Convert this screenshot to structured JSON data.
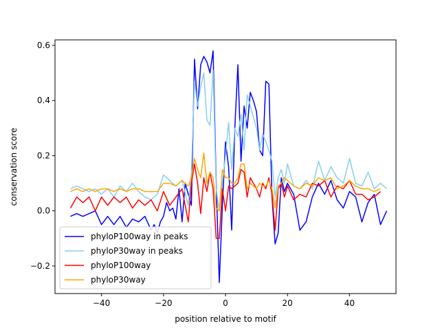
{
  "chart_data": {
    "type": "line",
    "xlabel": "position relative to motif",
    "ylabel": "conservation score",
    "xlim": [
      -55,
      55
    ],
    "ylim": [
      -0.3,
      0.62
    ],
    "xticks": [
      -40,
      -20,
      0,
      20,
      40
    ],
    "xtick_labels": [
      "−40",
      "−20",
      "0",
      "20",
      "40"
    ],
    "yticks": [
      -0.2,
      0.0,
      0.2,
      0.4,
      0.6
    ],
    "ytick_labels": [
      "−0.2",
      "0.0",
      "0.2",
      "0.4",
      "0.6"
    ],
    "grid": false,
    "legend_position": "lower-left",
    "series": [
      {
        "name": "phyloP100way in peaks",
        "color": "#0000ff",
        "points": [
          [
            -50,
            -0.02
          ],
          [
            -48,
            -0.01
          ],
          [
            -46,
            -0.02
          ],
          [
            -44,
            -0.01
          ],
          [
            -42,
            0.0
          ],
          [
            -40,
            -0.05
          ],
          [
            -38,
            -0.02
          ],
          [
            -36,
            -0.05
          ],
          [
            -34,
            -0.02
          ],
          [
            -32,
            -0.06
          ],
          [
            -30,
            -0.03
          ],
          [
            -28,
            -0.04
          ],
          [
            -26,
            -0.02
          ],
          [
            -24,
            -0.07
          ],
          [
            -23,
            -0.05
          ],
          [
            -22,
            -0.08
          ],
          [
            -21,
            -0.04
          ],
          [
            -20,
            -0.02
          ],
          [
            -19,
            0.03
          ],
          [
            -18,
            0.0
          ],
          [
            -17,
            0.01
          ],
          [
            -16,
            -0.03
          ],
          [
            -15,
            0.08
          ],
          [
            -14,
            -0.04
          ],
          [
            -13,
            0.1
          ],
          [
            -12,
            0.06
          ],
          [
            -11,
            0.02
          ],
          [
            -10,
            0.55
          ],
          [
            -9,
            0.37
          ],
          [
            -8,
            0.53
          ],
          [
            -7,
            0.56
          ],
          [
            -6,
            0.54
          ],
          [
            -5,
            0.5
          ],
          [
            -4,
            0.58
          ],
          [
            -3,
            0.1
          ],
          [
            -2,
            -0.26
          ],
          [
            -1,
            0.02
          ],
          [
            0,
            0.25
          ],
          [
            1,
            0.16
          ],
          [
            2,
            -0.07
          ],
          [
            3,
            0.3
          ],
          [
            4,
            0.53
          ],
          [
            5,
            0.18
          ],
          [
            6,
            0.38
          ],
          [
            7,
            0.3
          ],
          [
            8,
            0.43
          ],
          [
            9,
            0.4
          ],
          [
            10,
            0.36
          ],
          [
            11,
            0.22
          ],
          [
            12,
            0.2
          ],
          [
            13,
            0.47
          ],
          [
            14,
            0.46
          ],
          [
            15,
            0.05
          ],
          [
            16,
            -0.12
          ],
          [
            17,
            -0.08
          ],
          [
            18,
            0.12
          ],
          [
            19,
            0.07
          ],
          [
            20,
            0.1
          ],
          [
            22,
            0.06
          ],
          [
            24,
            -0.07
          ],
          [
            26,
            -0.04
          ],
          [
            28,
            0.05
          ],
          [
            30,
            0.1
          ],
          [
            32,
            0.06
          ],
          [
            34,
            0.11
          ],
          [
            36,
            0.04
          ],
          [
            38,
            0.01
          ],
          [
            40,
            0.07
          ],
          [
            42,
            0.05
          ],
          [
            44,
            -0.04
          ],
          [
            46,
            0.03
          ],
          [
            48,
            0.06
          ],
          [
            50,
            -0.05
          ],
          [
            52,
            0.0
          ]
        ]
      },
      {
        "name": "phyloP30way in peaks",
        "color": "#87ceeb",
        "points": [
          [
            -50,
            0.08
          ],
          [
            -48,
            0.09
          ],
          [
            -46,
            0.08
          ],
          [
            -44,
            0.07
          ],
          [
            -42,
            0.08
          ],
          [
            -40,
            0.06
          ],
          [
            -38,
            0.08
          ],
          [
            -36,
            0.05
          ],
          [
            -34,
            0.09
          ],
          [
            -32,
            0.07
          ],
          [
            -30,
            0.1
          ],
          [
            -28,
            0.07
          ],
          [
            -26,
            0.05
          ],
          [
            -24,
            0.04
          ],
          [
            -22,
            0.06
          ],
          [
            -20,
            0.13
          ],
          [
            -18,
            0.11
          ],
          [
            -16,
            0.09
          ],
          [
            -14,
            0.11
          ],
          [
            -12,
            0.02
          ],
          [
            -11,
            0.14
          ],
          [
            -10,
            0.47
          ],
          [
            -9,
            0.38
          ],
          [
            -8,
            0.45
          ],
          [
            -7,
            0.5
          ],
          [
            -6,
            0.33
          ],
          [
            -5,
            0.31
          ],
          [
            -4,
            0.51
          ],
          [
            -3,
            0.08
          ],
          [
            -2,
            0.0
          ],
          [
            -1,
            0.1
          ],
          [
            0,
            0.2
          ],
          [
            1,
            0.32
          ],
          [
            2,
            0.15
          ],
          [
            3,
            0.3
          ],
          [
            4,
            0.27
          ],
          [
            5,
            0.35
          ],
          [
            6,
            0.22
          ],
          [
            7,
            0.42
          ],
          [
            8,
            0.38
          ],
          [
            9,
            0.34
          ],
          [
            10,
            0.3
          ],
          [
            11,
            0.22
          ],
          [
            12,
            0.28
          ],
          [
            13,
            0.25
          ],
          [
            14,
            0.22
          ],
          [
            15,
            0.18
          ],
          [
            16,
            0.05
          ],
          [
            17,
            0.12
          ],
          [
            18,
            0.15
          ],
          [
            19,
            0.1
          ],
          [
            20,
            0.17
          ],
          [
            22,
            0.09
          ],
          [
            24,
            0.08
          ],
          [
            26,
            0.11
          ],
          [
            28,
            0.08
          ],
          [
            30,
            0.18
          ],
          [
            32,
            0.11
          ],
          [
            34,
            0.16
          ],
          [
            36,
            0.12
          ],
          [
            38,
            0.1
          ],
          [
            40,
            0.19
          ],
          [
            42,
            0.1
          ],
          [
            44,
            0.09
          ],
          [
            46,
            0.14
          ],
          [
            48,
            0.08
          ],
          [
            50,
            0.1
          ],
          [
            52,
            0.08
          ]
        ]
      },
      {
        "name": "phyloP100way",
        "color": "#ff0000",
        "points": [
          [
            -50,
            0.01
          ],
          [
            -48,
            0.05
          ],
          [
            -46,
            0.03
          ],
          [
            -44,
            0.05
          ],
          [
            -42,
            0.0
          ],
          [
            -40,
            0.05
          ],
          [
            -38,
            0.02
          ],
          [
            -36,
            0.05
          ],
          [
            -34,
            0.03
          ],
          [
            -32,
            0.05
          ],
          [
            -30,
            0.01
          ],
          [
            -28,
            0.04
          ],
          [
            -26,
            0.02
          ],
          [
            -24,
            0.04
          ],
          [
            -22,
            0.0
          ],
          [
            -20,
            0.07
          ],
          [
            -18,
            0.02
          ],
          [
            -16,
            0.05
          ],
          [
            -14,
            0.08
          ],
          [
            -12,
            -0.04
          ],
          [
            -11,
            0.1
          ],
          [
            -10,
            0.17
          ],
          [
            -9,
            0.1
          ],
          [
            -8,
            -0.01
          ],
          [
            -7,
            0.12
          ],
          [
            -6,
            0.07
          ],
          [
            -5,
            0.14
          ],
          [
            -4,
            0.08
          ],
          [
            -3,
            -0.1
          ],
          [
            -2,
            -0.1
          ],
          [
            -1,
            0.08
          ],
          [
            0,
            0.0
          ],
          [
            1,
            0.09
          ],
          [
            2,
            0.08
          ],
          [
            3,
            0.09
          ],
          [
            4,
            0.1
          ],
          [
            5,
            0.15
          ],
          [
            6,
            0.14
          ],
          [
            7,
            0.05
          ],
          [
            8,
            0.12
          ],
          [
            9,
            0.1
          ],
          [
            10,
            0.08
          ],
          [
            11,
            0.05
          ],
          [
            12,
            0.1
          ],
          [
            13,
            0.08
          ],
          [
            14,
            0.12
          ],
          [
            15,
            0.06
          ],
          [
            16,
            -0.07
          ],
          [
            17,
            0.08
          ],
          [
            18,
            0.1
          ],
          [
            19,
            0.05
          ],
          [
            20,
            0.09
          ],
          [
            22,
            0.04
          ],
          [
            24,
            0.06
          ],
          [
            26,
            0.05
          ],
          [
            28,
            0.1
          ],
          [
            30,
            0.09
          ],
          [
            32,
            0.11
          ],
          [
            34,
            0.05
          ],
          [
            36,
            0.09
          ],
          [
            38,
            0.08
          ],
          [
            40,
            0.11
          ],
          [
            42,
            0.06
          ],
          [
            44,
            0.06
          ],
          [
            46,
            0.04
          ],
          [
            48,
            0.05
          ],
          [
            50,
            0.07
          ]
        ]
      },
      {
        "name": "phyloP30way",
        "color": "#ffa500",
        "points": [
          [
            -50,
            0.07
          ],
          [
            -48,
            0.08
          ],
          [
            -46,
            0.07
          ],
          [
            -44,
            0.08
          ],
          [
            -42,
            0.07
          ],
          [
            -40,
            0.08
          ],
          [
            -38,
            0.08
          ],
          [
            -36,
            0.07
          ],
          [
            -34,
            0.08
          ],
          [
            -32,
            0.07
          ],
          [
            -30,
            0.08
          ],
          [
            -28,
            0.08
          ],
          [
            -26,
            0.07
          ],
          [
            -24,
            0.07
          ],
          [
            -22,
            0.07
          ],
          [
            -20,
            0.1
          ],
          [
            -18,
            0.1
          ],
          [
            -16,
            0.09
          ],
          [
            -14,
            0.11
          ],
          [
            -12,
            0.09
          ],
          [
            -11,
            0.12
          ],
          [
            -10,
            0.19
          ],
          [
            -9,
            0.15
          ],
          [
            -8,
            0.12
          ],
          [
            -7,
            0.21
          ],
          [
            -6,
            0.1
          ],
          [
            -5,
            0.14
          ],
          [
            -4,
            0.12
          ],
          [
            -3,
            0.01
          ],
          [
            -2,
            0.0
          ],
          [
            -1,
            0.15
          ],
          [
            0,
            0.12
          ],
          [
            1,
            0.12
          ],
          [
            2,
            0.1
          ],
          [
            3,
            0.1
          ],
          [
            4,
            0.12
          ],
          [
            5,
            0.17
          ],
          [
            6,
            0.17
          ],
          [
            7,
            0.08
          ],
          [
            8,
            0.1
          ],
          [
            9,
            0.09
          ],
          [
            10,
            0.08
          ],
          [
            11,
            0.1
          ],
          [
            12,
            0.09
          ],
          [
            13,
            0.09
          ],
          [
            14,
            0.11
          ],
          [
            15,
            0.08
          ],
          [
            16,
            0.01
          ],
          [
            17,
            0.09
          ],
          [
            18,
            0.1
          ],
          [
            19,
            0.12
          ],
          [
            20,
            0.11
          ],
          [
            22,
            0.09
          ],
          [
            24,
            0.08
          ],
          [
            26,
            0.1
          ],
          [
            28,
            0.09
          ],
          [
            30,
            0.12
          ],
          [
            32,
            0.11
          ],
          [
            34,
            0.12
          ],
          [
            36,
            0.08
          ],
          [
            38,
            0.09
          ],
          [
            40,
            0.11
          ],
          [
            42,
            0.09
          ],
          [
            44,
            0.08
          ],
          [
            46,
            0.08
          ],
          [
            48,
            0.07
          ],
          [
            50,
            0.08
          ]
        ]
      }
    ]
  }
}
